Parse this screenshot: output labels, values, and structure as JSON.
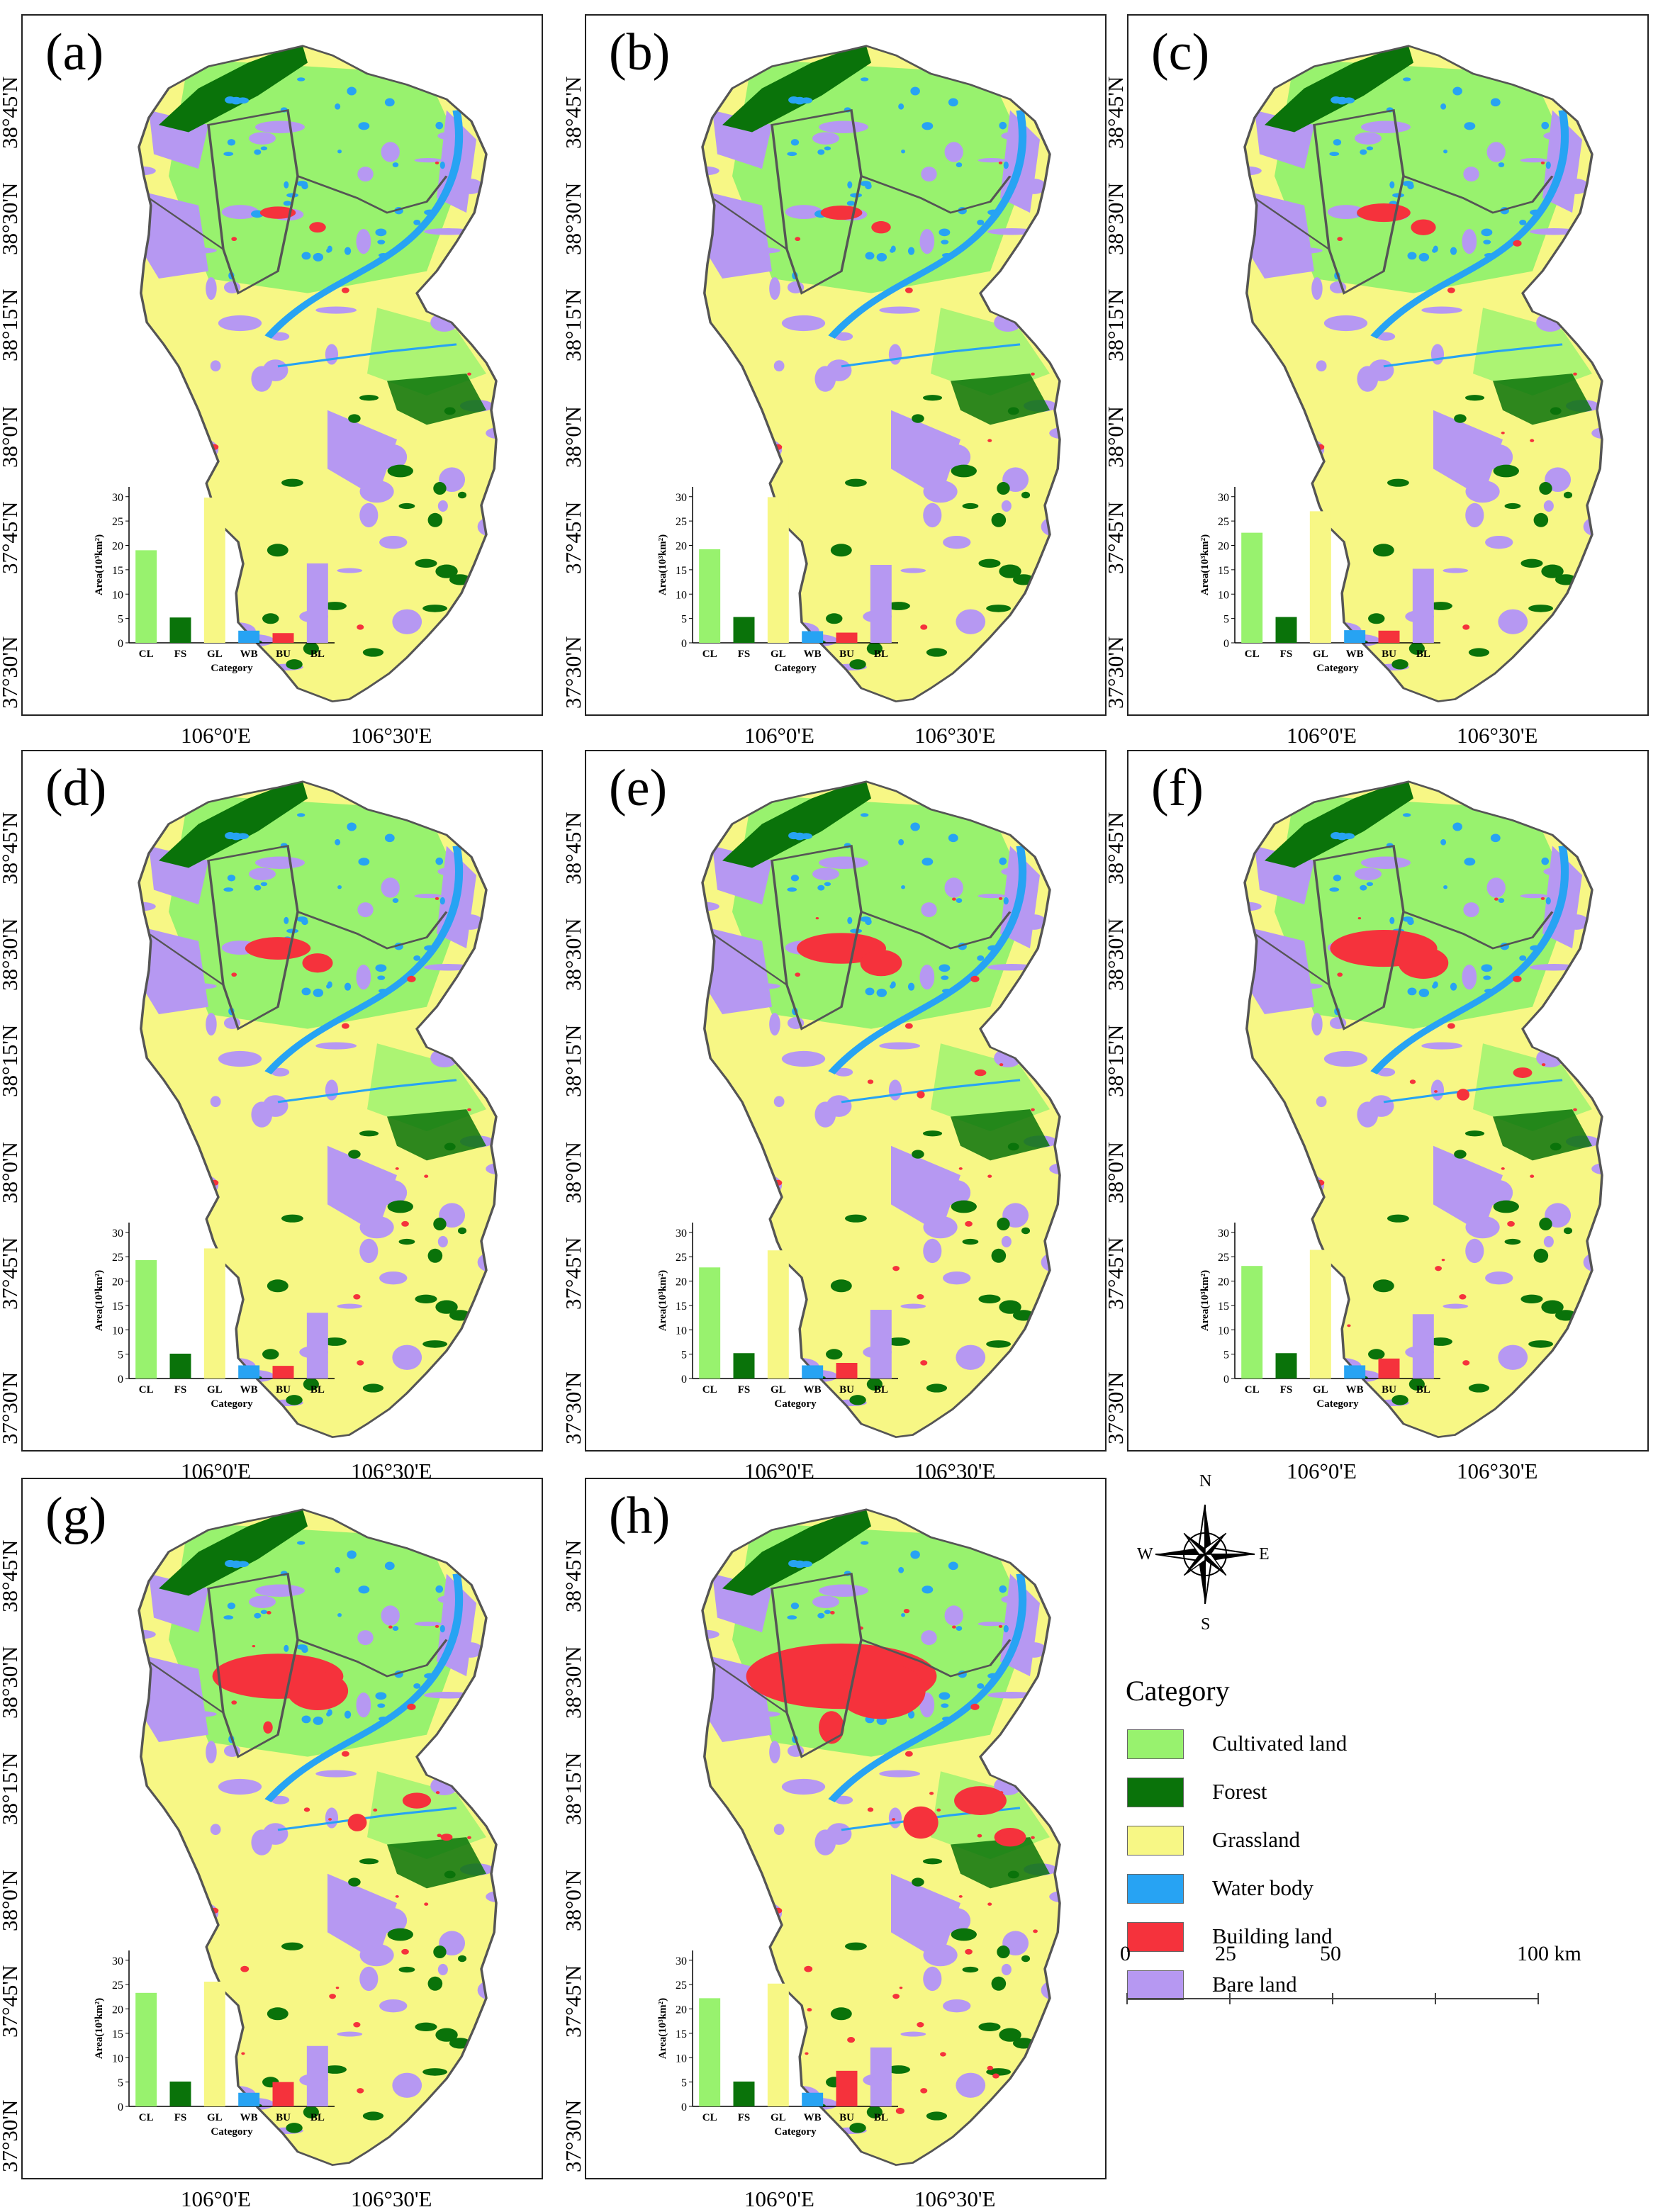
{
  "panels": [
    {
      "label": "(a)",
      "bars": [
        19.0,
        5.2,
        29.8,
        2.5,
        2.0,
        16.3
      ],
      "built_scale": 0.6
    },
    {
      "label": "(b)",
      "bars": [
        19.2,
        5.3,
        29.9,
        2.4,
        2.1,
        16.0
      ],
      "built_scale": 0.7
    },
    {
      "label": "(c)",
      "bars": [
        22.6,
        5.3,
        27.0,
        2.6,
        2.5,
        15.2
      ],
      "built_scale": 0.9
    },
    {
      "label": "(d)",
      "bars": [
        24.3,
        5.1,
        26.7,
        2.7,
        2.6,
        13.5
      ],
      "built_scale": 1.1
    },
    {
      "label": "(e)",
      "bars": [
        22.8,
        5.2,
        26.3,
        2.7,
        3.2,
        14.1
      ],
      "built_scale": 1.5
    },
    {
      "label": "(f)",
      "bars": [
        23.1,
        5.2,
        26.4,
        2.7,
        4.1,
        13.2
      ],
      "built_scale": 1.8
    },
    {
      "label": "(g)",
      "bars": [
        23.3,
        5.1,
        25.6,
        2.8,
        5.0,
        12.4
      ],
      "built_scale": 2.2
    },
    {
      "label": "(h)",
      "bars": [
        22.2,
        5.1,
        25.2,
        2.8,
        7.3,
        12.1
      ],
      "built_scale": 3.2
    }
  ],
  "lat_labels": [
    "38°45'N",
    "38°30'N",
    "38°15'N",
    "38°0'N",
    "37°45'N",
    "37°30'N"
  ],
  "lon_labels": [
    "106°0'E",
    "106°30'E"
  ],
  "inset": {
    "ylabel": "Area(10³km²)",
    "xlabel": "Category",
    "yticks": [
      "0",
      "5",
      "10",
      "15",
      "20",
      "25",
      "30"
    ],
    "categories": [
      "CL",
      "FS",
      "GL",
      "WB",
      "BU",
      "BL"
    ]
  },
  "legend": {
    "title": "Category",
    "items": [
      {
        "label": "Cultivated land",
        "color": "#98f26e"
      },
      {
        "label": "Forest",
        "color": "#0a730a"
      },
      {
        "label": "Grassland",
        "color": "#f7f785"
      },
      {
        "label": "Water body",
        "color": "#27a3f3"
      },
      {
        "label": "Building land",
        "color": "#f5323c"
      },
      {
        "label": "Bare land",
        "color": "#b698f2"
      }
    ]
  },
  "compass": {
    "n": "N",
    "s": "S",
    "e": "E",
    "w": "W"
  },
  "scalebar": {
    "ticks": [
      "0",
      "25",
      "50",
      "100 km"
    ]
  },
  "chart_data": [
    {
      "type": "bar",
      "title": "(a)",
      "categories": [
        "CL",
        "FS",
        "GL",
        "WB",
        "BU",
        "BL"
      ],
      "values": [
        19.0,
        5.2,
        29.8,
        2.5,
        2.0,
        16.3
      ],
      "xlabel": "Category",
      "ylabel": "Area(10³km²)",
      "ylim": [
        0,
        30
      ]
    },
    {
      "type": "bar",
      "title": "(b)",
      "categories": [
        "CL",
        "FS",
        "GL",
        "WB",
        "BU",
        "BL"
      ],
      "values": [
        19.2,
        5.3,
        29.9,
        2.4,
        2.1,
        16.0
      ],
      "xlabel": "Category",
      "ylabel": "Area(10³km²)",
      "ylim": [
        0,
        30
      ]
    },
    {
      "type": "bar",
      "title": "(c)",
      "categories": [
        "CL",
        "FS",
        "GL",
        "WB",
        "BU",
        "BL"
      ],
      "values": [
        22.6,
        5.3,
        27.0,
        2.6,
        2.5,
        15.2
      ],
      "xlabel": "Category",
      "ylabel": "Area(10³km²)",
      "ylim": [
        0,
        30
      ]
    },
    {
      "type": "bar",
      "title": "(d)",
      "categories": [
        "CL",
        "FS",
        "GL",
        "WB",
        "BU",
        "BL"
      ],
      "values": [
        24.3,
        5.1,
        26.7,
        2.7,
        2.6,
        13.5
      ],
      "xlabel": "Category",
      "ylabel": "Area(10³km²)",
      "ylim": [
        0,
        30
      ]
    },
    {
      "type": "bar",
      "title": "(e)",
      "categories": [
        "CL",
        "FS",
        "GL",
        "WB",
        "BU",
        "BL"
      ],
      "values": [
        22.8,
        5.2,
        26.3,
        2.7,
        3.2,
        14.1
      ],
      "xlabel": "Category",
      "ylabel": "Area(10³km²)",
      "ylim": [
        0,
        30
      ]
    },
    {
      "type": "bar",
      "title": "(f)",
      "categories": [
        "CL",
        "FS",
        "GL",
        "WB",
        "BU",
        "BL"
      ],
      "values": [
        23.1,
        5.2,
        26.4,
        2.7,
        4.1,
        13.2
      ],
      "xlabel": "Category",
      "ylabel": "Area(10³km²)",
      "ylim": [
        0,
        30
      ]
    },
    {
      "type": "bar",
      "title": "(g)",
      "categories": [
        "CL",
        "FS",
        "GL",
        "WB",
        "BU",
        "BL"
      ],
      "values": [
        23.3,
        5.1,
        25.6,
        2.8,
        5.0,
        12.4
      ],
      "xlabel": "Category",
      "ylabel": "Area(10³km²)",
      "ylim": [
        0,
        30
      ]
    },
    {
      "type": "bar",
      "title": "(h)",
      "categories": [
        "CL",
        "FS",
        "GL",
        "WB",
        "BU",
        "BL"
      ],
      "values": [
        22.2,
        5.1,
        25.2,
        2.8,
        7.3,
        12.1
      ],
      "xlabel": "Category",
      "ylabel": "Area(10³km²)",
      "ylim": [
        0,
        30
      ]
    }
  ]
}
